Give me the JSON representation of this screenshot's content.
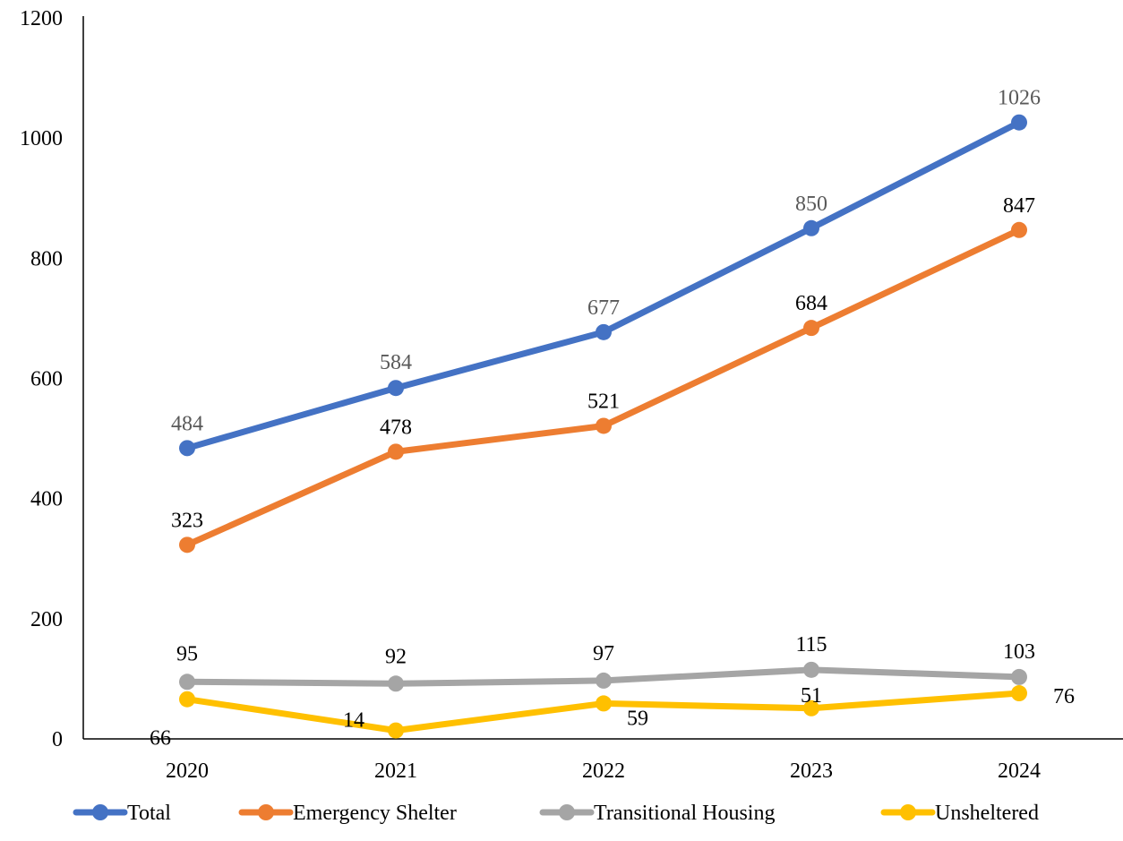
{
  "chart_data": {
    "type": "line",
    "categories": [
      "2020",
      "2021",
      "2022",
      "2023",
      "2024"
    ],
    "ylim": [
      0,
      1200
    ],
    "yticks": [
      "0",
      "200",
      "400",
      "600",
      "800",
      "1000",
      "1200"
    ],
    "grid": false,
    "legend_position": "bottom",
    "series": [
      {
        "name": "Total",
        "values": [
          484,
          584,
          677,
          850,
          1026
        ],
        "color": "#4472C4",
        "label_color": "#595959"
      },
      {
        "name": "Emergency Shelter",
        "values": [
          323,
          478,
          521,
          684,
          847
        ],
        "color": "#ED7D31",
        "label_color": "#000000"
      },
      {
        "name": "Transitional Housing",
        "values": [
          95,
          92,
          97,
          115,
          103
        ],
        "color": "#A5A5A5",
        "label_color": "#000000"
      },
      {
        "name": "Unsheltered",
        "values": [
          66,
          14,
          59,
          51,
          76
        ],
        "color": "#FFC000",
        "label_color": "#000000"
      }
    ]
  }
}
